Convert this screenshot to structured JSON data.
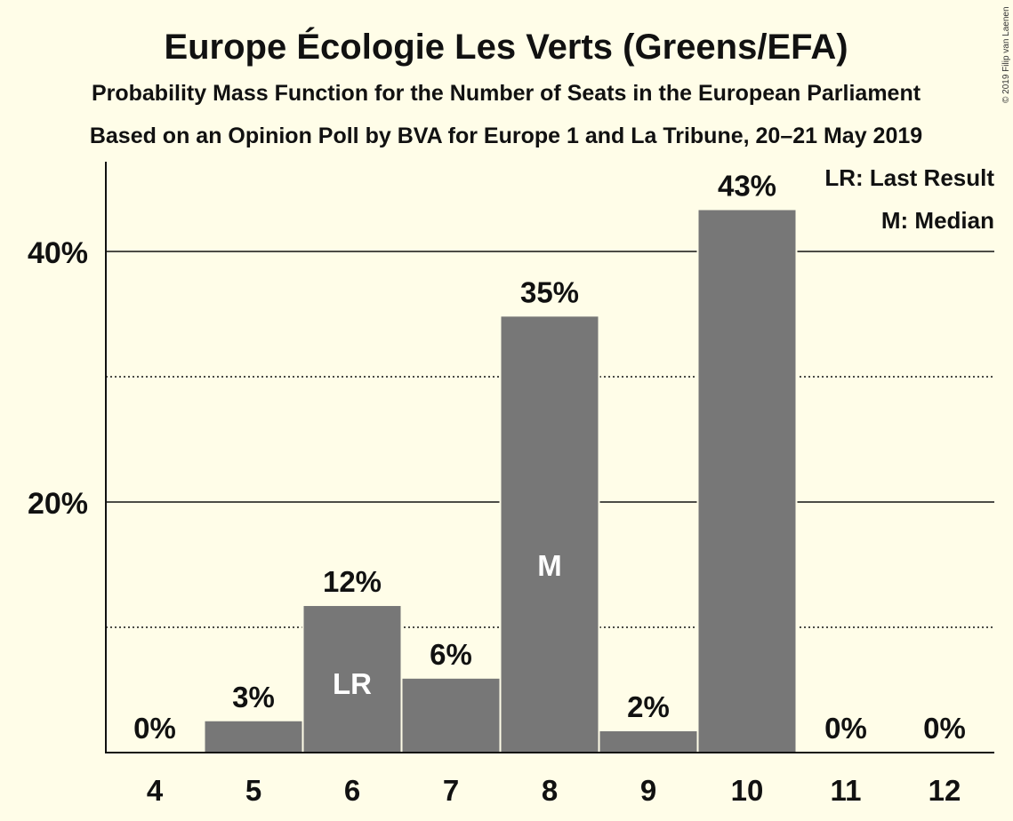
{
  "chart_data": {
    "type": "bar",
    "title": "Europe Écologie Les Verts (Greens/EFA)",
    "subtitle": "Probability Mass Function for the Number of Seats in the European Parliament",
    "subtitle2": "Based on an Opinion Poll by BVA for Europe 1 and La Tribune, 20–21 May 2019",
    "copyright": "© 2019 Filip van Laenen",
    "categories": [
      "4",
      "5",
      "6",
      "7",
      "8",
      "9",
      "10",
      "11",
      "12"
    ],
    "values": [
      0,
      2.5,
      11.7,
      5.9,
      34.8,
      1.7,
      43.3,
      0,
      0
    ],
    "data_labels": [
      "0%",
      "3%",
      "12%",
      "6%",
      "35%",
      "2%",
      "43%",
      "0%",
      "0%"
    ],
    "bar_markers": [
      {
        "category": "6",
        "text": "LR"
      },
      {
        "category": "8",
        "text": "M"
      }
    ],
    "ylim": [
      0,
      47
    ],
    "major_ticks": [
      {
        "value": 20,
        "label": "20%"
      },
      {
        "value": 40,
        "label": "40%"
      }
    ],
    "minor_gridlines": [
      10,
      30
    ],
    "grid": true,
    "legend_position": "top-right",
    "legend": [
      "LR: Last Result",
      "M: Median"
    ],
    "colors": {
      "background": "#fffde8",
      "bar": "#777777",
      "text": "#111111",
      "marker_text": "#ffffff"
    }
  }
}
